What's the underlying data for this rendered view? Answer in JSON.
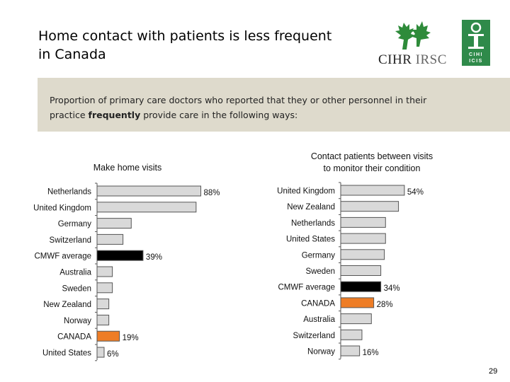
{
  "header": {
    "title_line1": "Home contact with patients is less frequent",
    "title_line2": "in Canada"
  },
  "logos": {
    "cihr_text": "CIHR",
    "irsc_text": "IRSC",
    "icis_text_top": "CIHI",
    "icis_text_bottom": "ICIS"
  },
  "banner": {
    "line1": "Proportion of primary care doctors who reported that they or other personnel in their",
    "line2_pre": "practice ",
    "line2_bold": "frequently",
    "line2_post": " provide care in the following ways:"
  },
  "chart_data": [
    {
      "type": "bar",
      "orientation": "horizontal",
      "title": "Make home visits",
      "categories": [
        "Netherlands",
        "United Kingdom",
        "Germany",
        "Switzerland",
        "CMWF average",
        "Australia",
        "Sweden",
        "New Zealand",
        "Norway",
        "CANADA",
        "United States"
      ],
      "values": [
        88,
        84,
        29,
        22,
        39,
        13,
        13,
        10,
        10,
        19,
        6
      ],
      "value_labels": [
        "88%",
        "",
        "",
        "",
        "39%",
        "",
        "",
        "",
        "",
        "19%",
        "6%"
      ],
      "highlight": {
        "CMWF average": "black",
        "CANADA": "orange"
      },
      "xlim": [
        0,
        100
      ]
    },
    {
      "type": "bar",
      "orientation": "horizontal",
      "title": "Contact patients between visits to monitor their condition",
      "title_line1": "Contact patients between visits",
      "title_line2": "to monitor their condition",
      "categories": [
        "United Kingdom",
        "New Zealand",
        "Netherlands",
        "United States",
        "Germany",
        "Sweden",
        "CMWF average",
        "CANADA",
        "Australia",
        "Switzerland",
        "Norway"
      ],
      "values": [
        54,
        49,
        38,
        38,
        37,
        34,
        34,
        28,
        26,
        18,
        16
      ],
      "value_labels": [
        "54%",
        "",
        "",
        "",
        "",
        "",
        "34%",
        "28%",
        "",
        "",
        "16%"
      ],
      "highlight": {
        "CMWF average": "black",
        "CANADA": "orange"
      },
      "xlim": [
        0,
        100
      ]
    }
  ],
  "colors": {
    "bar_default": "#d9d9d9",
    "bar_border": "#555555",
    "average": "#000000",
    "canada": "#ee7d26",
    "banner_bg": "#dedacc",
    "logo_green": "#2e8b3a",
    "icis_green": "#2f8a4a"
  },
  "footer": {
    "page_number": "29"
  }
}
